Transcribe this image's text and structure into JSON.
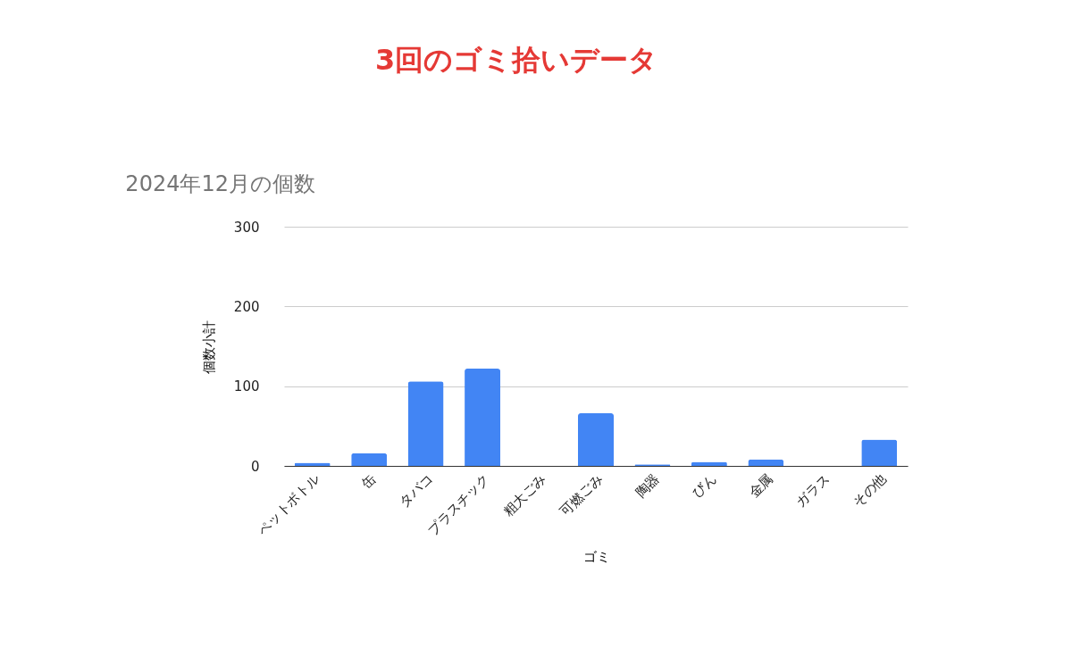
{
  "chart_data": {
    "type": "bar",
    "title": "3回のゴミ拾いデータ",
    "subtitle": "2024年12月の個数",
    "xlabel": "ゴミ",
    "ylabel": "個数小計",
    "categories": [
      "ペットボトル",
      "缶",
      "タバコ",
      "プラスチック",
      "粗大ごみ",
      "可燃ごみ",
      "陶器",
      "びん",
      "金属",
      "ガラス",
      "その他"
    ],
    "values": [
      4,
      16,
      106,
      122,
      0,
      66,
      2,
      5,
      8,
      0,
      33
    ],
    "color": "#4285f4",
    "ylim": [
      0,
      300
    ],
    "yticks": [
      0,
      100,
      200,
      300
    ],
    "grid": "y"
  }
}
